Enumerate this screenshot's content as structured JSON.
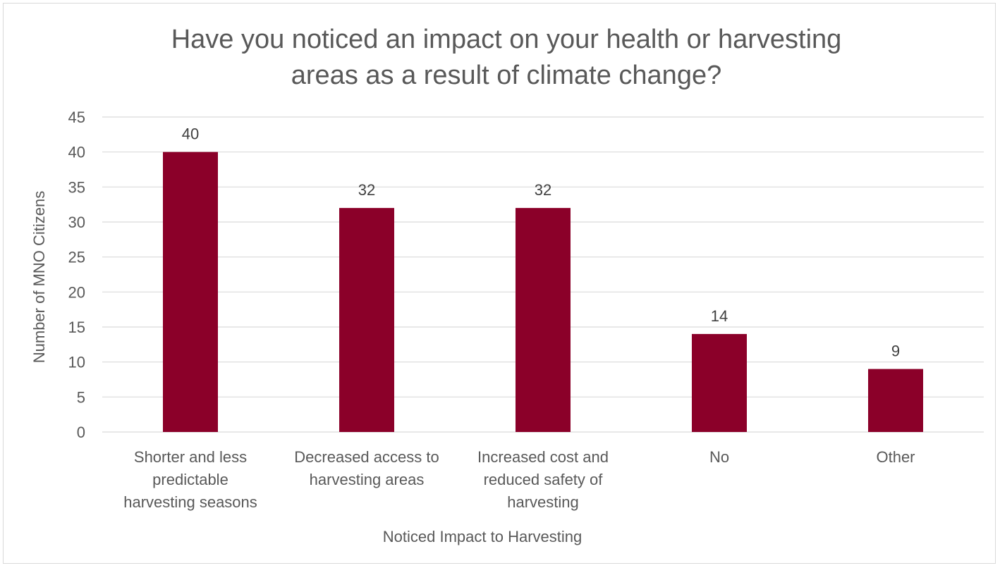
{
  "chart_data": {
    "type": "bar",
    "title": "Have you noticed an impact on your health or harvesting areas as a result of climate change?",
    "title_lines": [
      "Have you noticed an impact on your health or harvesting",
      "areas as a result of climate change?"
    ],
    "xlabel": "Noticed Impact to Harvesting",
    "ylabel": "Number of MNO Citizens",
    "categories": [
      "Shorter and less predictable harvesting seasons",
      "Decreased access to harvesting areas",
      "Increased cost and reduced safety of harvesting",
      "No",
      "Other"
    ],
    "category_lines": [
      [
        "Shorter and less",
        "predictable",
        "harvesting seasons"
      ],
      [
        "Decreased access to",
        "harvesting areas"
      ],
      [
        "Increased cost and",
        "reduced safety of",
        "harvesting"
      ],
      [
        "No"
      ],
      [
        "Other"
      ]
    ],
    "values": [
      40,
      32,
      32,
      14,
      9
    ],
    "data_labels": [
      "40",
      "32",
      "32",
      "14",
      "9"
    ],
    "ylim": [
      0,
      45
    ],
    "yticks": [
      0,
      5,
      10,
      15,
      20,
      25,
      30,
      35,
      40,
      45
    ],
    "grid": true,
    "legend": "none",
    "bar_color": "#8B0029"
  }
}
